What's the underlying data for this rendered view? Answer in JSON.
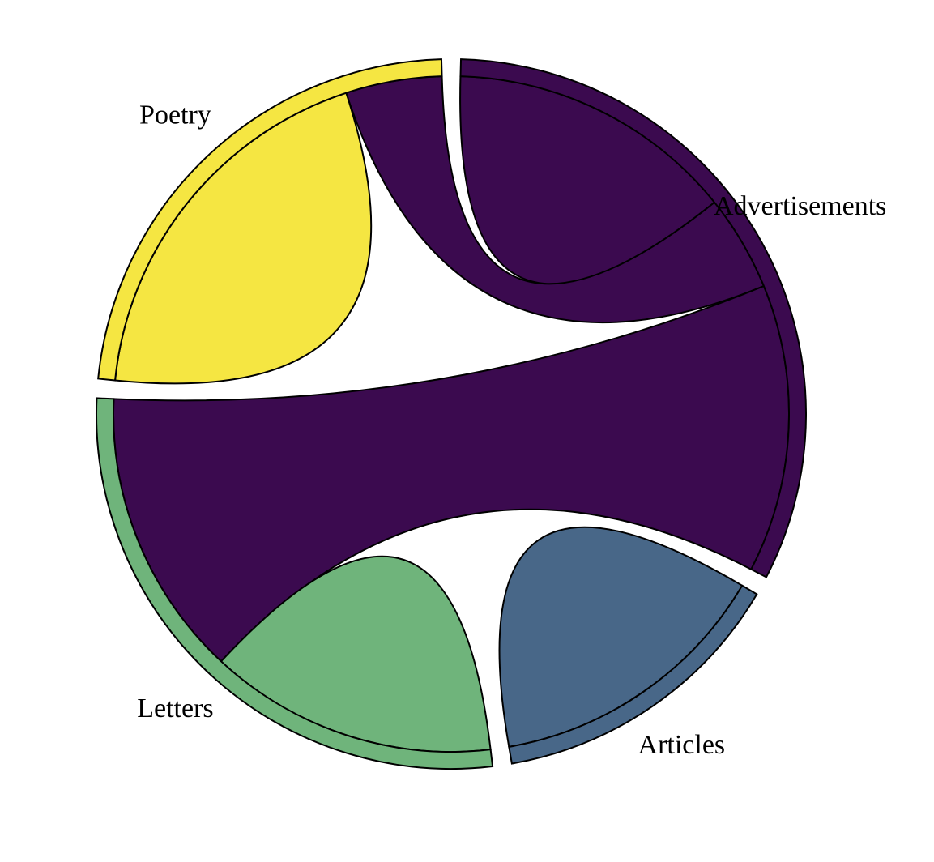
{
  "chart_data": {
    "type": "chord",
    "title": "",
    "groups": [
      {
        "name": "Advertisements",
        "color": "#3b0a4f"
      },
      {
        "name": "Articles",
        "color": "#486788"
      },
      {
        "name": "Letters",
        "color": "#6fb47b"
      },
      {
        "name": "Poetry",
        "color": "#f5e642"
      }
    ],
    "matrix": [
      [
        3,
        0,
        3,
        1
      ],
      [
        0,
        3,
        0,
        0
      ],
      [
        3,
        0,
        3,
        0
      ],
      [
        1,
        0,
        0,
        4
      ]
    ],
    "ribbons": [
      {
        "source": "Advertisements",
        "target": "Advertisements",
        "value": 3
      },
      {
        "source": "Advertisements",
        "target": "Poetry",
        "value": 1
      },
      {
        "source": "Advertisements",
        "target": "Letters",
        "value": 3
      },
      {
        "source": "Articles",
        "target": "Articles",
        "value": 3
      },
      {
        "source": "Letters",
        "target": "Letters",
        "value": 3
      },
      {
        "source": "Poetry",
        "target": "Poetry",
        "value": 4
      }
    ],
    "legend": "none",
    "grid": false
  }
}
